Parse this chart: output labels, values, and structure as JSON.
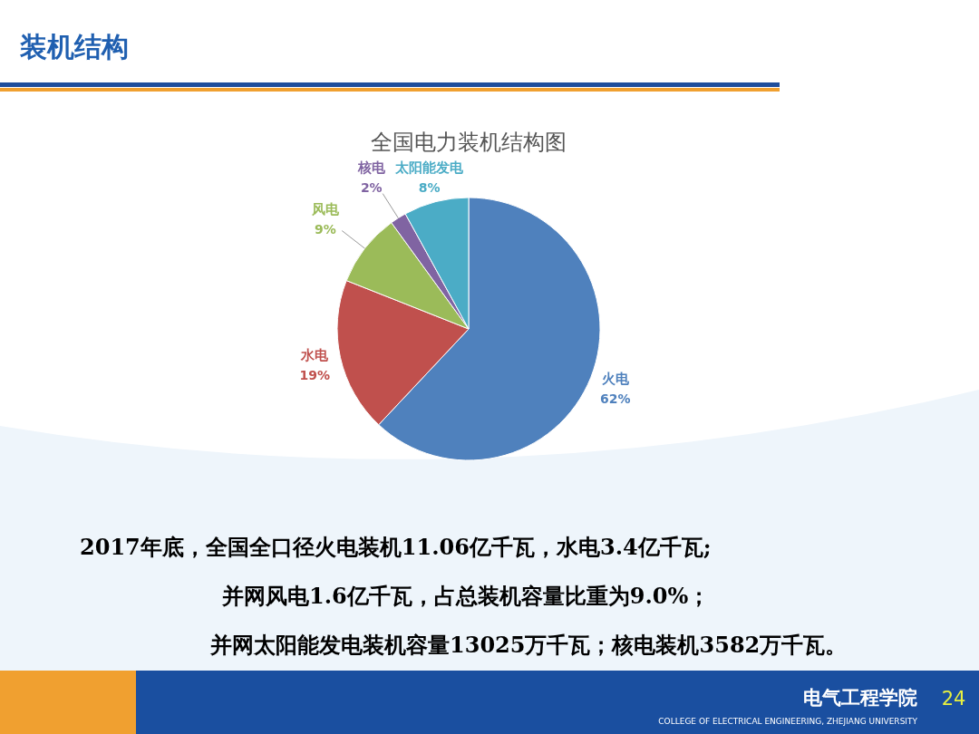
{
  "chart_data": {
    "type": "pie",
    "title": "全国电力装机结构图",
    "categories": [
      "火电",
      "水电",
      "风电",
      "核电",
      "太阳能发电"
    ],
    "values": [
      62,
      19,
      9,
      2,
      8
    ],
    "colors": [
      "#4f81bd",
      "#c0504d",
      "#9bbb59",
      "#8064a2",
      "#4bacc6"
    ],
    "value_labels": [
      "62%",
      "19%",
      "9%",
      "2%",
      "8%"
    ],
    "annotations": [
      "装机结构",
      "2017年底，全国全口径火电装机11.06亿千瓦，水电3.4亿千瓦;",
      "并网风电1.6亿千瓦，占总装机容量比重为9.0%；",
      "并网太阳能发电装机容量13025万千瓦；核电装机3582万千瓦。",
      "电气工程学院",
      "COLLEGE OF ELECTRICAL ENGINEERING, ZHEJIANG UNIVERSITY",
      "24"
    ]
  }
}
